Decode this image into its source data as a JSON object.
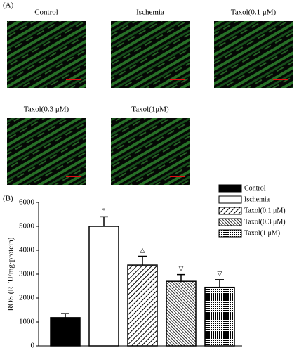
{
  "panel_a": {
    "label": "(A)",
    "images": [
      "Control",
      "Ischemia",
      "Taxol(0.1 μM)",
      "Taxol(0.3 μM)",
      "Taxol(1μM)"
    ]
  },
  "chart_data": {
    "type": "bar",
    "panel_label": "(B)",
    "ylabel": "ROS (RFU/mg·protein)",
    "categories": [
      "Control",
      "Ischemia",
      "Taxol(0.1 μM)",
      "Taxol(0.3 μM)",
      "Taxol(1 μM)"
    ],
    "values": [
      1180,
      5000,
      3380,
      2700,
      2450
    ],
    "errors": [
      170,
      400,
      370,
      280,
      320
    ],
    "markers": [
      null,
      "*",
      "△",
      "▽",
      "▽"
    ],
    "bar_styles": [
      "solid",
      "open",
      "hatch",
      "dense-hatch",
      "dots"
    ],
    "color": "#000000",
    "ylim": [
      0,
      6000
    ],
    "yticks": [
      0,
      1000,
      2000,
      3000,
      4000,
      5000,
      6000
    ],
    "grid": false,
    "legend": "upper right"
  }
}
